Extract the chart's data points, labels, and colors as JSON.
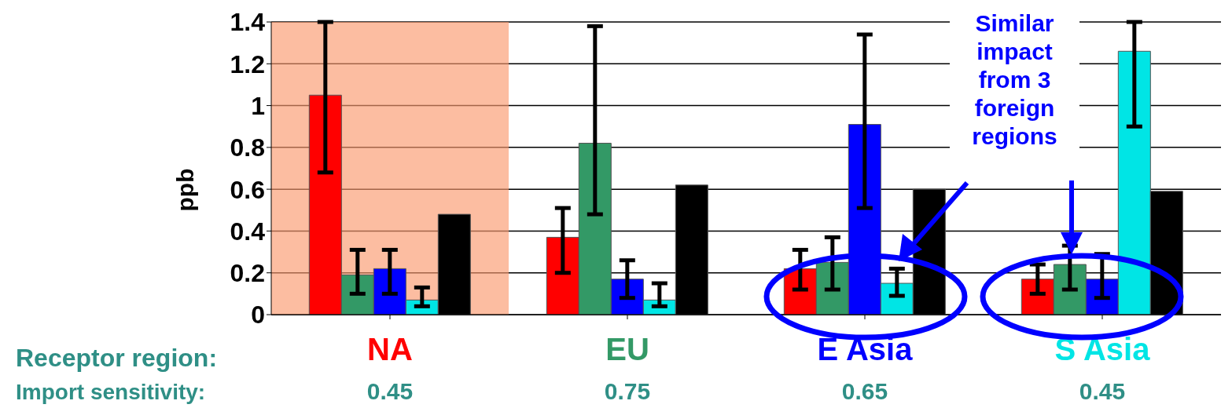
{
  "chart_data": {
    "type": "bar",
    "ylabel": "ppb",
    "categories": [
      "NA",
      "EU",
      "E Asia",
      "S Asia"
    ],
    "series": [
      {
        "color": "#ff0000",
        "values": [
          1.05,
          0.37,
          0.22,
          0.17
        ],
        "errors": [
          [
            0.68,
            1.4
          ],
          [
            0.2,
            0.51
          ],
          [
            0.12,
            0.31
          ],
          [
            0.1,
            0.24
          ]
        ]
      },
      {
        "color": "#339966",
        "values": [
          0.19,
          0.82,
          0.25,
          0.24
        ],
        "errors": [
          [
            0.1,
            0.31
          ],
          [
            0.48,
            1.38
          ],
          [
            0.12,
            0.37
          ],
          [
            0.12,
            0.33
          ]
        ]
      },
      {
        "color": "#0000ff",
        "values": [
          0.22,
          0.17,
          0.91,
          0.17
        ],
        "errors": [
          [
            0.1,
            0.31
          ],
          [
            0.08,
            0.26
          ],
          [
            0.51,
            1.34
          ],
          [
            0.08,
            0.29
          ]
        ]
      },
      {
        "color": "#00e5e5",
        "values": [
          0.07,
          0.07,
          0.15,
          1.26
        ],
        "errors": [
          [
            0.04,
            0.13
          ],
          [
            0.04,
            0.15
          ],
          [
            0.09,
            0.22
          ],
          [
            0.9,
            1.4
          ]
        ]
      },
      {
        "color": "#000000",
        "values": [
          0.48,
          0.62,
          0.6,
          0.59
        ]
      }
    ],
    "ylim": [
      0,
      1.4
    ],
    "yticks": [
      0,
      0.2,
      0.4,
      0.6,
      0.8,
      1,
      1.2,
      1.4
    ],
    "grid": "y",
    "bands": [
      {
        "axis": "x",
        "from": "NA",
        "to": "NA",
        "color": "#fa9a6e"
      }
    ],
    "annotations": [
      "Receptor region:",
      "Import sensitivity:",
      "Similar impact from 3 foreign regions",
      "0.45",
      "0.75",
      "0.65",
      "0.45"
    ]
  }
}
